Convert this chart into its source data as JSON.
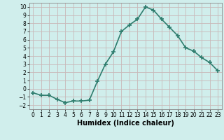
{
  "xlabel": "Humidex (Indice chaleur)",
  "x_values": [
    0,
    1,
    2,
    3,
    4,
    5,
    6,
    7,
    8,
    9,
    10,
    11,
    12,
    13,
    14,
    15,
    16,
    17,
    18,
    19,
    20,
    21,
    22,
    23
  ],
  "y_values": [
    -0.5,
    -0.8,
    -0.8,
    -1.3,
    -1.7,
    -1.5,
    -1.5,
    -1.4,
    0.9,
    3.0,
    4.5,
    7.0,
    7.8,
    8.5,
    10.0,
    9.6,
    8.5,
    7.5,
    6.5,
    5.0,
    4.6,
    3.8,
    3.2,
    2.2
  ],
  "line_color": "#2e7d6e",
  "marker": "+",
  "marker_size": 4,
  "bg_color": "#d0eeec",
  "grid_color": "#c8b8b8",
  "ylim": [
    -2.5,
    10.5
  ],
  "xlim": [
    -0.5,
    23.5
  ],
  "yticks": [
    -2,
    -1,
    0,
    1,
    2,
    3,
    4,
    5,
    6,
    7,
    8,
    9,
    10
  ],
  "xtick_labels": [
    "0",
    "1",
    "2",
    "3",
    "4",
    "5",
    "6",
    "7",
    "8",
    "9",
    "10",
    "11",
    "12",
    "13",
    "14",
    "15",
    "16",
    "17",
    "18",
    "19",
    "20",
    "21",
    "22",
    "23"
  ],
  "tick_fontsize": 5.5,
  "xlabel_fontsize": 7.0,
  "linewidth": 1.2
}
